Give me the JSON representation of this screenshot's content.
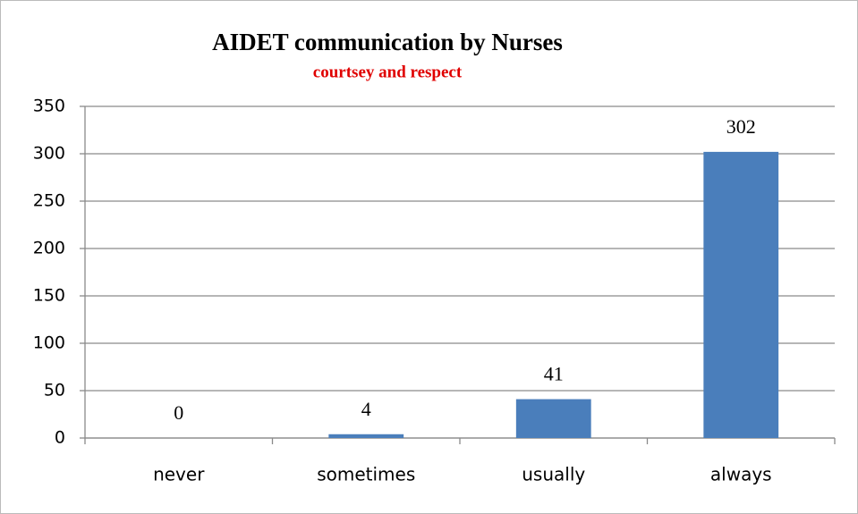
{
  "chart_data": {
    "type": "bar",
    "title": "AIDET communication by Nurses",
    "subtitle": "courtsey and respect",
    "categories": [
      "never",
      "sometimes",
      "usually",
      "always"
    ],
    "values": [
      0,
      4,
      41,
      302
    ],
    "color": "#4a7ebb",
    "ylim": [
      0,
      350
    ],
    "yticks": [
      0,
      50,
      100,
      150,
      200,
      250,
      300,
      350
    ],
    "grid": true
  }
}
